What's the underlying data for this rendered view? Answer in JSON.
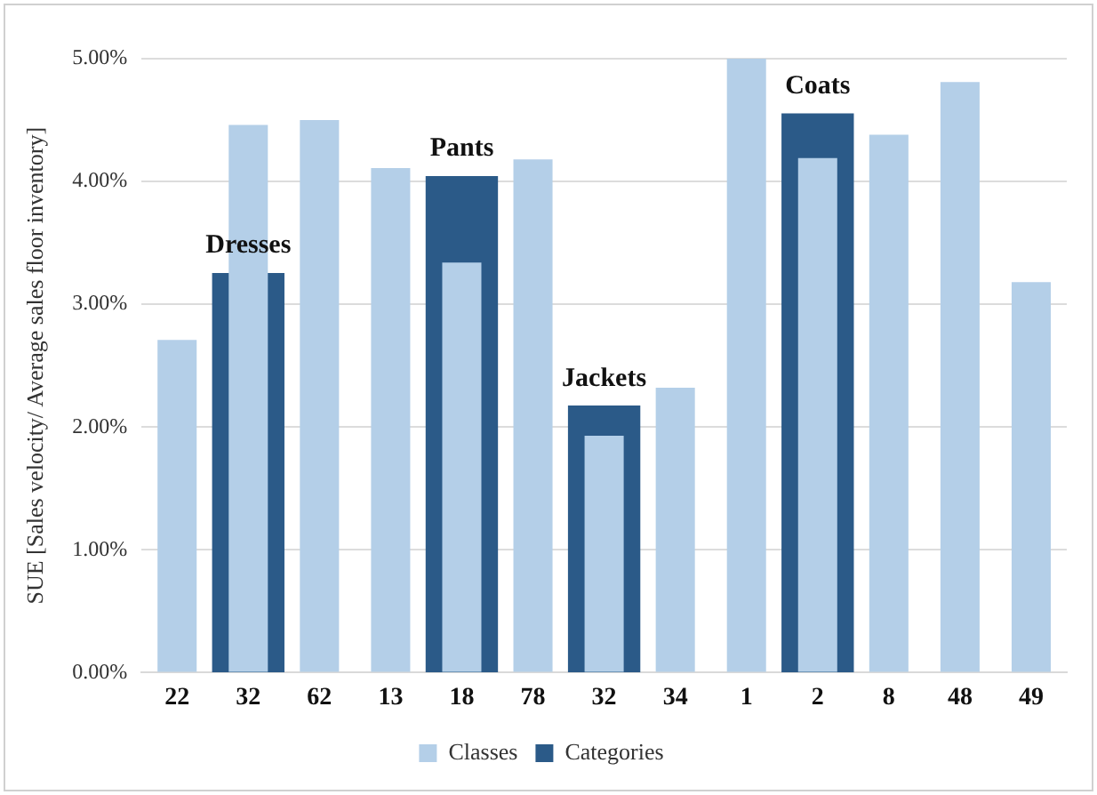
{
  "chart_data": {
    "type": "bar",
    "ylabel": "SUE [Sales velocity/ Average sales floor inventory]",
    "categories": [
      "22",
      "32",
      "62",
      "13",
      "18",
      "78",
      "32",
      "34",
      "1",
      "2",
      "8",
      "48",
      "49"
    ],
    "series": [
      {
        "name": "Categories",
        "color": "#2b5a88",
        "values": [
          null,
          3.25,
          null,
          null,
          4.04,
          null,
          2.17,
          null,
          null,
          4.55,
          null,
          null,
          null
        ],
        "value_labels": [
          null,
          "Dresses",
          null,
          null,
          "Pants",
          null,
          "Jackets",
          null,
          null,
          "Coats",
          null,
          null,
          null
        ]
      },
      {
        "name": "Classes",
        "color": "#b4cfe8",
        "values": [
          2.71,
          4.46,
          4.5,
          4.11,
          3.34,
          4.18,
          1.93,
          2.32,
          5.0,
          4.19,
          4.38,
          4.81,
          3.18
        ]
      }
    ],
    "ylim": [
      0,
      5
    ],
    "yticks": [
      {
        "value": 0,
        "label": "0.00%"
      },
      {
        "value": 1,
        "label": "1.00%"
      },
      {
        "value": 2,
        "label": "2.00%"
      },
      {
        "value": 3,
        "label": "3.00%"
      },
      {
        "value": 4,
        "label": "4.00%"
      },
      {
        "value": 5,
        "label": "5.00%"
      }
    ],
    "grid": "y",
    "legend": "bottom"
  }
}
